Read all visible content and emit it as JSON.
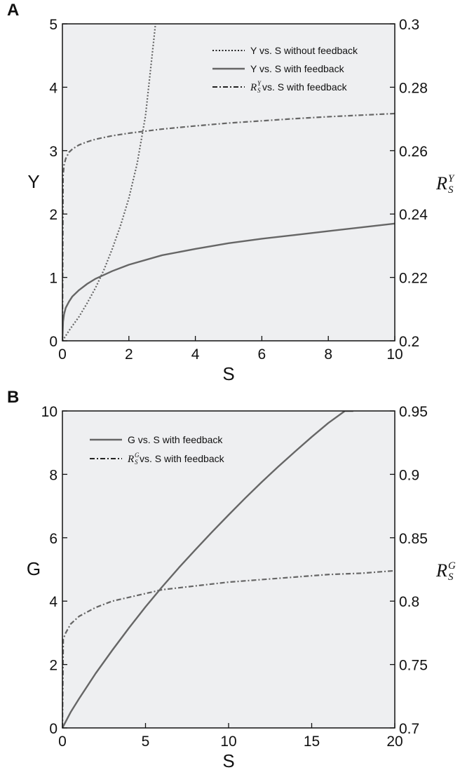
{
  "colors": {
    "plot_background": "#eeeff1",
    "series_line": "#666666",
    "axis": "#111111"
  },
  "chart_data": [
    {
      "panel_label": "A",
      "type": "line",
      "xlabel": "S",
      "ylabel": "Y",
      "y2label": {
        "base": "R",
        "sup": "Y",
        "sub": "S"
      },
      "xlim": [
        0,
        10
      ],
      "ylim": [
        0,
        5
      ],
      "y2lim": [
        0.2,
        0.3
      ],
      "xticks": [
        "0",
        "2",
        "4",
        "6",
        "8",
        "10"
      ],
      "yticks": [
        "0",
        "1",
        "2",
        "3",
        "4",
        "5"
      ],
      "y2ticks": [
        "0.2",
        "0.22",
        "0.24",
        "0.26",
        "0.28",
        "0.3"
      ],
      "legend_position": "top-right",
      "grid": false,
      "series": [
        {
          "name": "Y vs. S without feedback",
          "style": "dotted",
          "axis": "left",
          "x": [
            0,
            0.25,
            0.5,
            0.75,
            1.0,
            1.25,
            1.5,
            1.75,
            2.0,
            2.25,
            2.5,
            2.75,
            2.8
          ],
          "y": [
            0,
            0.2,
            0.38,
            0.6,
            0.84,
            1.12,
            1.45,
            1.82,
            2.25,
            2.8,
            3.55,
            4.75,
            5.0
          ]
        },
        {
          "name": "Y vs. S with feedback",
          "style": "solid",
          "axis": "left",
          "x": [
            0,
            0.02,
            0.05,
            0.1,
            0.2,
            0.3,
            0.5,
            0.75,
            1.0,
            1.5,
            2.0,
            3.0,
            4.0,
            5.0,
            6.0,
            7.0,
            8.0,
            9.0,
            10.0
          ],
          "y": [
            0,
            0.3,
            0.42,
            0.52,
            0.62,
            0.7,
            0.8,
            0.9,
            0.98,
            1.1,
            1.2,
            1.35,
            1.45,
            1.54,
            1.61,
            1.67,
            1.73,
            1.79,
            1.85
          ]
        },
        {
          "name": "R_S^Y vs. S with feedback",
          "legend_base": "R",
          "legend_sup": "Y",
          "legend_sub": "S",
          "legend_suffix": " vs. S with feedback",
          "style": "dashdot",
          "axis": "right",
          "x": [
            0,
            0.02,
            0.05,
            0.1,
            0.2,
            0.3,
            0.5,
            0.75,
            1.0,
            1.5,
            2.0,
            3.0,
            4.0,
            5.0,
            6.0,
            7.0,
            8.0,
            9.0,
            10.0
          ],
          "y": [
            0.2,
            0.252,
            0.2555,
            0.2575,
            0.2595,
            0.2605,
            0.2618,
            0.2628,
            0.2636,
            0.2647,
            0.2655,
            0.2668,
            0.2678,
            0.2687,
            0.2694,
            0.2701,
            0.2707,
            0.2712,
            0.2717
          ]
        }
      ]
    },
    {
      "panel_label": "B",
      "type": "line",
      "xlabel": "S",
      "ylabel": "G",
      "y2label": {
        "base": "R",
        "sup": "G",
        "sub": "S"
      },
      "xlim": [
        0,
        20
      ],
      "ylim": [
        0,
        10
      ],
      "y2lim": [
        0.7,
        0.95
      ],
      "xticks": [
        "0",
        "5",
        "10",
        "15",
        "20"
      ],
      "yticks": [
        "0",
        "2",
        "4",
        "6",
        "8",
        "10"
      ],
      "y2ticks": [
        "0.7",
        "0.75",
        "0.8",
        "0.85",
        "0.9",
        "0.95"
      ],
      "legend_position": "top-left",
      "grid": false,
      "series": [
        {
          "name": "G vs. S with feedback",
          "style": "solid",
          "axis": "left",
          "x": [
            0,
            0.5,
            1.0,
            2.0,
            3.0,
            4.0,
            5.0,
            6.0,
            7.0,
            8.0,
            9.0,
            10.0,
            11.0,
            12.0,
            13.0,
            14.0,
            15.0,
            16.0,
            17.0,
            17.5
          ],
          "y": [
            0,
            0.5,
            0.92,
            1.72,
            2.45,
            3.15,
            3.82,
            4.45,
            5.05,
            5.62,
            6.18,
            6.72,
            7.25,
            7.76,
            8.25,
            8.72,
            9.18,
            9.62,
            10.0,
            10.0
          ]
        },
        {
          "name": "R_S^G vs. S with feedback",
          "legend_base": "R",
          "legend_sup": "G",
          "legend_sub": "S",
          "legend_suffix": " vs. S with feedback",
          "style": "dashdot",
          "axis": "right",
          "x": [
            0,
            0.05,
            0.2,
            0.5,
            1.0,
            2.0,
            3.0,
            4.0,
            5.0,
            6.0,
            8.0,
            10.0,
            12.0,
            14.0,
            16.0,
            18.0,
            20.0
          ],
          "y": [
            0.7,
            0.77,
            0.775,
            0.782,
            0.788,
            0.795,
            0.8,
            0.803,
            0.806,
            0.809,
            0.812,
            0.815,
            0.817,
            0.819,
            0.821,
            0.822,
            0.824
          ]
        }
      ]
    }
  ]
}
